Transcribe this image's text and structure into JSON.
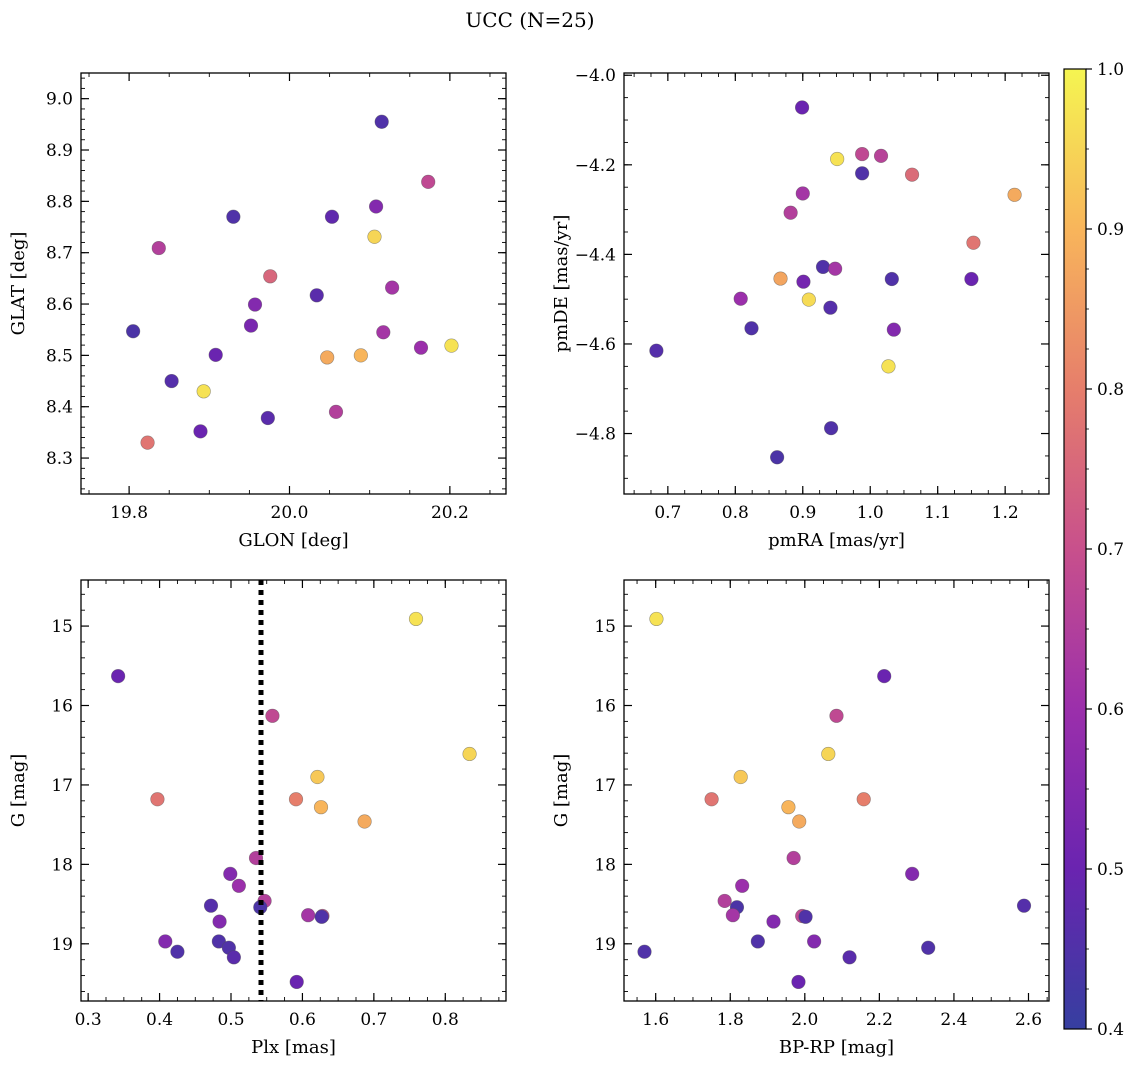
{
  "figure": {
    "title": "UCC (N=25)"
  },
  "colorbar": {
    "min": 0.4,
    "max": 1.0,
    "ticks": [
      0.4,
      0.5,
      0.6,
      0.7,
      0.8,
      0.9,
      1.0
    ],
    "tick_labels": [
      "0.4",
      "0.5",
      "0.6",
      "0.7",
      "0.8",
      "0.9",
      "1.0"
    ],
    "colormap": "plasma"
  },
  "chart_data": [
    {
      "type": "scatter",
      "title": "",
      "xlabel": "GLON [deg]",
      "ylabel": "GLAT [deg]",
      "xlim": [
        19.74,
        20.27
      ],
      "ylim": [
        8.23,
        9.05
      ],
      "xticks": [
        19.8,
        20.0,
        20.2
      ],
      "xtick_labels": [
        "19.8",
        "20.0",
        "20.2"
      ],
      "yticks": [
        8.3,
        8.4,
        8.5,
        8.6,
        8.7,
        8.8,
        8.9,
        9.0
      ],
      "ytick_labels": [
        "8.3",
        "8.4",
        "8.5",
        "8.6",
        "8.7",
        "8.8",
        "8.9",
        "9.0"
      ],
      "invert_y": false,
      "points": [
        {
          "x": 20.115,
          "y": 8.955,
          "c": 0.45
        },
        {
          "x": 20.173,
          "y": 8.838,
          "c": 0.68
        },
        {
          "x": 20.108,
          "y": 8.79,
          "c": 0.55
        },
        {
          "x": 19.93,
          "y": 8.77,
          "c": 0.45
        },
        {
          "x": 20.053,
          "y": 8.77,
          "c": 0.48
        },
        {
          "x": 20.106,
          "y": 8.731,
          "c": 0.95
        },
        {
          "x": 19.837,
          "y": 8.709,
          "c": 0.65
        },
        {
          "x": 19.976,
          "y": 8.654,
          "c": 0.75
        },
        {
          "x": 20.128,
          "y": 8.632,
          "c": 0.62
        },
        {
          "x": 20.034,
          "y": 8.617,
          "c": 0.47
        },
        {
          "x": 19.957,
          "y": 8.599,
          "c": 0.55
        },
        {
          "x": 19.952,
          "y": 8.558,
          "c": 0.53
        },
        {
          "x": 20.117,
          "y": 8.545,
          "c": 0.62
        },
        {
          "x": 19.805,
          "y": 8.547,
          "c": 0.44
        },
        {
          "x": 20.202,
          "y": 8.519,
          "c": 0.97
        },
        {
          "x": 20.164,
          "y": 8.515,
          "c": 0.6
        },
        {
          "x": 19.908,
          "y": 8.501,
          "c": 0.5
        },
        {
          "x": 20.047,
          "y": 8.496,
          "c": 0.88
        },
        {
          "x": 20.089,
          "y": 8.5,
          "c": 0.9
        },
        {
          "x": 19.853,
          "y": 8.45,
          "c": 0.46
        },
        {
          "x": 19.893,
          "y": 8.43,
          "c": 0.97
        },
        {
          "x": 20.058,
          "y": 8.39,
          "c": 0.65
        },
        {
          "x": 19.973,
          "y": 8.378,
          "c": 0.47
        },
        {
          "x": 19.889,
          "y": 8.352,
          "c": 0.5
        },
        {
          "x": 19.823,
          "y": 8.33,
          "c": 0.78
        }
      ]
    },
    {
      "type": "scatter",
      "title": "",
      "xlabel": "pmRA [mas/yr]",
      "ylabel": "pmDE [mas/yr]",
      "xlim": [
        0.635,
        1.265
      ],
      "ylim": [
        -4.935,
        -3.995
      ],
      "xticks": [
        0.7,
        0.8,
        0.9,
        1.0,
        1.1,
        1.2
      ],
      "xtick_labels": [
        "0.7",
        "0.8",
        "0.9",
        "1.0",
        "1.1",
        "1.2"
      ],
      "yticks": [
        -4.8,
        -4.6,
        -4.4,
        -4.2,
        -4.0
      ],
      "ytick_labels": [
        "−4.8",
        "−4.6",
        "−4.4",
        "−4.2",
        "−4.0"
      ],
      "invert_y": false,
      "points": [
        {
          "x": 0.899,
          "y": -4.072,
          "c": 0.5
        },
        {
          "x": 0.988,
          "y": -4.176,
          "c": 0.68
        },
        {
          "x": 1.016,
          "y": -4.18,
          "c": 0.66
        },
        {
          "x": 0.951,
          "y": -4.187,
          "c": 0.97
        },
        {
          "x": 0.988,
          "y": -4.219,
          "c": 0.45
        },
        {
          "x": 1.062,
          "y": -4.222,
          "c": 0.76
        },
        {
          "x": 0.9,
          "y": -4.264,
          "c": 0.62
        },
        {
          "x": 1.214,
          "y": -4.267,
          "c": 0.88
        },
        {
          "x": 0.882,
          "y": -4.307,
          "c": 0.65
        },
        {
          "x": 1.153,
          "y": -4.374,
          "c": 0.78
        },
        {
          "x": 0.93,
          "y": -4.428,
          "c": 0.45
        },
        {
          "x": 0.948,
          "y": -4.432,
          "c": 0.62
        },
        {
          "x": 0.867,
          "y": -4.454,
          "c": 0.87
        },
        {
          "x": 1.032,
          "y": -4.455,
          "c": 0.45
        },
        {
          "x": 1.15,
          "y": -4.455,
          "c": 0.5
        },
        {
          "x": 0.901,
          "y": -4.461,
          "c": 0.52
        },
        {
          "x": 0.808,
          "y": -4.499,
          "c": 0.6
        },
        {
          "x": 0.909,
          "y": -4.501,
          "c": 0.96
        },
        {
          "x": 0.941,
          "y": -4.519,
          "c": 0.46
        },
        {
          "x": 0.824,
          "y": -4.565,
          "c": 0.45
        },
        {
          "x": 1.035,
          "y": -4.568,
          "c": 0.55
        },
        {
          "x": 0.683,
          "y": -4.615,
          "c": 0.46
        },
        {
          "x": 1.027,
          "y": -4.65,
          "c": 0.97
        },
        {
          "x": 0.942,
          "y": -4.788,
          "c": 0.45
        },
        {
          "x": 0.862,
          "y": -4.853,
          "c": 0.44
        }
      ]
    },
    {
      "type": "scatter",
      "title": "",
      "xlabel": "Plx [mas]",
      "ylabel": "G [mag]",
      "xlim": [
        0.29,
        0.885
      ],
      "ylim": [
        19.72,
        14.42
      ],
      "xticks": [
        0.3,
        0.4,
        0.5,
        0.6,
        0.7,
        0.8
      ],
      "xtick_labels": [
        "0.3",
        "0.4",
        "0.5",
        "0.6",
        "0.7",
        "0.8"
      ],
      "yticks": [
        15,
        16,
        17,
        18,
        19
      ],
      "ytick_labels": [
        "15",
        "16",
        "17",
        "18",
        "19"
      ],
      "invert_y": true,
      "vline": {
        "x": 0.542,
        "style": "dotted"
      },
      "points": [
        {
          "x": 0.759,
          "y": 14.91,
          "c": 0.97
        },
        {
          "x": 0.342,
          "y": 15.63,
          "c": 0.5
        },
        {
          "x": 0.558,
          "y": 16.13,
          "c": 0.68
        },
        {
          "x": 0.834,
          "y": 16.61,
          "c": 0.95
        },
        {
          "x": 0.621,
          "y": 16.9,
          "c": 0.93
        },
        {
          "x": 0.397,
          "y": 17.18,
          "c": 0.78
        },
        {
          "x": 0.591,
          "y": 17.18,
          "c": 0.8
        },
        {
          "x": 0.626,
          "y": 17.28,
          "c": 0.9
        },
        {
          "x": 0.687,
          "y": 17.46,
          "c": 0.88
        },
        {
          "x": 0.535,
          "y": 17.92,
          "c": 0.65
        },
        {
          "x": 0.499,
          "y": 18.12,
          "c": 0.55
        },
        {
          "x": 0.511,
          "y": 18.27,
          "c": 0.6
        },
        {
          "x": 0.547,
          "y": 18.46,
          "c": 0.65
        },
        {
          "x": 0.472,
          "y": 18.52,
          "c": 0.46
        },
        {
          "x": 0.541,
          "y": 18.54,
          "c": 0.44
        },
        {
          "x": 0.608,
          "y": 18.64,
          "c": 0.62
        },
        {
          "x": 0.628,
          "y": 18.65,
          "c": 0.68
        },
        {
          "x": 0.627,
          "y": 18.66,
          "c": 0.45
        },
        {
          "x": 0.484,
          "y": 18.72,
          "c": 0.55
        },
        {
          "x": 0.408,
          "y": 18.97,
          "c": 0.55
        },
        {
          "x": 0.483,
          "y": 18.97,
          "c": 0.45
        },
        {
          "x": 0.497,
          "y": 19.05,
          "c": 0.45
        },
        {
          "x": 0.425,
          "y": 19.1,
          "c": 0.45
        },
        {
          "x": 0.504,
          "y": 19.17,
          "c": 0.47
        },
        {
          "x": 0.592,
          "y": 19.48,
          "c": 0.5
        }
      ]
    },
    {
      "type": "scatter",
      "title": "",
      "xlabel": "BP-RP [mag]",
      "ylabel": "G [mag]",
      "xlim": [
        1.515,
        2.655
      ],
      "ylim": [
        19.72,
        14.42
      ],
      "xticks": [
        1.6,
        1.8,
        2.0,
        2.2,
        2.4,
        2.6
      ],
      "xtick_labels": [
        "1.6",
        "1.8",
        "2.0",
        "2.2",
        "2.4",
        "2.6"
      ],
      "yticks": [
        15,
        16,
        17,
        18,
        19
      ],
      "ytick_labels": [
        "15",
        "16",
        "17",
        "18",
        "19"
      ],
      "invert_y": true,
      "points": [
        {
          "x": 1.602,
          "y": 14.91,
          "c": 0.97
        },
        {
          "x": 2.213,
          "y": 15.63,
          "c": 0.5
        },
        {
          "x": 2.085,
          "y": 16.13,
          "c": 0.68
        },
        {
          "x": 2.063,
          "y": 16.61,
          "c": 0.95
        },
        {
          "x": 1.828,
          "y": 16.9,
          "c": 0.93
        },
        {
          "x": 1.75,
          "y": 17.18,
          "c": 0.78
        },
        {
          "x": 2.158,
          "y": 17.18,
          "c": 0.8
        },
        {
          "x": 1.956,
          "y": 17.28,
          "c": 0.9
        },
        {
          "x": 1.985,
          "y": 17.46,
          "c": 0.88
        },
        {
          "x": 1.97,
          "y": 17.92,
          "c": 0.65
        },
        {
          "x": 2.288,
          "y": 18.12,
          "c": 0.55
        },
        {
          "x": 1.832,
          "y": 18.27,
          "c": 0.6
        },
        {
          "x": 1.785,
          "y": 18.46,
          "c": 0.65
        },
        {
          "x": 2.588,
          "y": 18.52,
          "c": 0.46
        },
        {
          "x": 1.818,
          "y": 18.54,
          "c": 0.44
        },
        {
          "x": 1.807,
          "y": 18.64,
          "c": 0.62
        },
        {
          "x": 1.993,
          "y": 18.65,
          "c": 0.68
        },
        {
          "x": 2.002,
          "y": 18.66,
          "c": 0.45
        },
        {
          "x": 1.916,
          "y": 18.72,
          "c": 0.55
        },
        {
          "x": 2.025,
          "y": 18.97,
          "c": 0.55
        },
        {
          "x": 1.874,
          "y": 18.97,
          "c": 0.45
        },
        {
          "x": 2.331,
          "y": 19.05,
          "c": 0.45
        },
        {
          "x": 1.57,
          "y": 19.1,
          "c": 0.45
        },
        {
          "x": 2.12,
          "y": 19.17,
          "c": 0.47
        },
        {
          "x": 1.983,
          "y": 19.48,
          "c": 0.5
        }
      ]
    }
  ]
}
